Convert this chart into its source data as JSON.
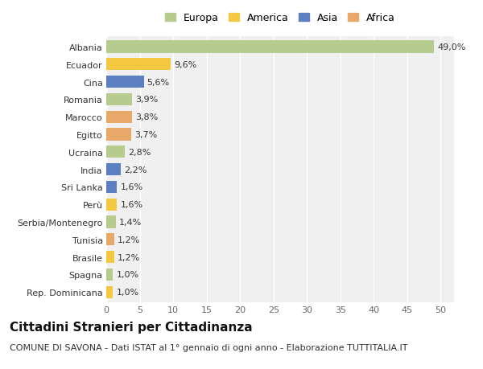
{
  "categories": [
    "Albania",
    "Ecuador",
    "Cina",
    "Romania",
    "Marocco",
    "Egitto",
    "Ucraina",
    "India",
    "Sri Lanka",
    "Perù",
    "Serbia/Montenegro",
    "Tunisia",
    "Brasile",
    "Spagna",
    "Rep. Dominicana"
  ],
  "values": [
    49.0,
    9.6,
    5.6,
    3.9,
    3.8,
    3.7,
    2.8,
    2.2,
    1.6,
    1.6,
    1.4,
    1.2,
    1.2,
    1.0,
    1.0
  ],
  "labels": [
    "49,0%",
    "9,6%",
    "5,6%",
    "3,9%",
    "3,8%",
    "3,7%",
    "2,8%",
    "2,2%",
    "1,6%",
    "1,6%",
    "1,4%",
    "1,2%",
    "1,2%",
    "1,0%",
    "1,0%"
  ],
  "colors": [
    "#b5cc8e",
    "#f5c842",
    "#5b7fc0",
    "#b5cc8e",
    "#e8a86a",
    "#e8a86a",
    "#b5cc8e",
    "#5b7fc0",
    "#5b7fc0",
    "#f5c842",
    "#b5cc8e",
    "#e8a86a",
    "#f5c842",
    "#b5cc8e",
    "#f5c842"
  ],
  "continent_colors": {
    "Europa": "#b5cc8e",
    "America": "#f5c842",
    "Asia": "#5b7fc0",
    "Africa": "#e8a86a"
  },
  "title": "Cittadini Stranieri per Cittadinanza",
  "subtitle": "COMUNE DI SAVONA - Dati ISTAT al 1° gennaio di ogni anno - Elaborazione TUTTITALIA.IT",
  "xlim_max": 52,
  "xticks": [
    0,
    5,
    10,
    15,
    20,
    25,
    30,
    35,
    40,
    45,
    50
  ],
  "background_color": "#ffffff",
  "plot_bg_color": "#f0f0f0",
  "grid_color": "#ffffff",
  "title_fontsize": 11,
  "subtitle_fontsize": 8,
  "label_fontsize": 8,
  "tick_fontsize": 8,
  "legend_fontsize": 9
}
